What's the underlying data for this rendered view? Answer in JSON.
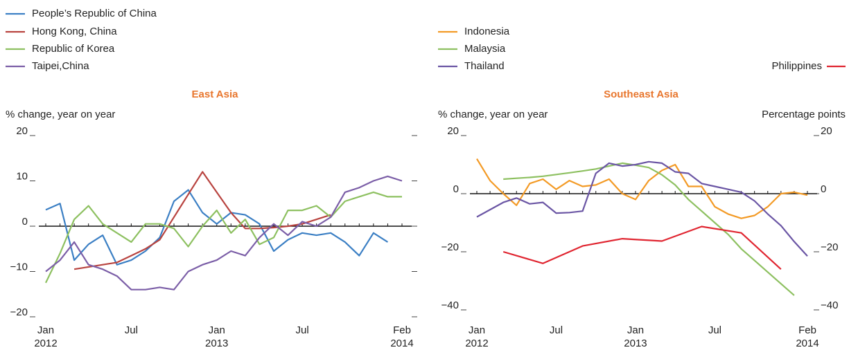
{
  "chart_data": [
    {
      "type": "line",
      "title": "East Asia",
      "y_label": "% change, year on year",
      "ycolor": "#222222",
      "x": [
        "2012-01",
        "2012-02",
        "2012-03",
        "2012-04",
        "2012-05",
        "2012-06",
        "2012-07",
        "2012-08",
        "2012-09",
        "2012-10",
        "2012-11",
        "2012-12",
        "2013-01",
        "2013-02",
        "2013-03",
        "2013-04",
        "2013-05",
        "2013-06",
        "2013-07",
        "2013-08",
        "2013-09",
        "2013-10",
        "2013-11",
        "2013-12",
        "2014-01",
        "2014-02"
      ],
      "xticks": [
        {
          "value": "2012-01",
          "label": "Jan",
          "year": "2012"
        },
        {
          "value": "2012-07",
          "label": "Jul"
        },
        {
          "value": "2013-01",
          "label": "Jan",
          "year": "2013"
        },
        {
          "value": "2013-07",
          "label": "Jul"
        },
        {
          "value": "2014-02",
          "label": "Feb",
          "year": "2014"
        }
      ],
      "ylim": [
        -20,
        20
      ],
      "yticks": [
        {
          "value": -20,
          "label": "−20"
        },
        {
          "value": -10,
          "label": "−10"
        },
        0,
        10,
        20
      ],
      "series": [
        {
          "name": "People’s Republic of China",
          "color": "#3b7fc4",
          "values": [
            3.6,
            5,
            -7.5,
            -4,
            -2,
            -8.5,
            -7.5,
            -5.5,
            -2.5,
            5.5,
            8,
            3,
            0.5,
            3,
            2.5,
            0.5,
            -5.5,
            -3,
            -1.5,
            -2,
            -1.5,
            -3.5,
            -6.5,
            -1.5,
            -3.5,
            null
          ]
        },
        {
          "name": "Hong Kong, China",
          "color": "#b8433f",
          "values": [
            null,
            null,
            -9.5,
            -9,
            -8.5,
            -8,
            -6.5,
            -5,
            -3,
            2,
            7,
            12,
            7.5,
            3,
            -0.5,
            -0.5,
            -0.3,
            0,
            0.5,
            1.5,
            2.5,
            null,
            null,
            null,
            null,
            null
          ]
        },
        {
          "name": "Republic of Korea",
          "color": "#8dc060",
          "values": [
            -12.5,
            -6,
            1.5,
            4.5,
            0.5,
            -1.5,
            -3.5,
            0.5,
            0.5,
            -0.5,
            -4.5,
            0,
            3.5,
            -1.5,
            1.5,
            -4,
            -2.5,
            3.5,
            3.5,
            4.5,
            2,
            5.5,
            6.5,
            7.5,
            6.5,
            6.5
          ]
        },
        {
          "name": "Taipei,China",
          "color": "#7b5ea7",
          "values": [
            -10,
            -7.5,
            -3.5,
            -8.5,
            -9.5,
            -11,
            -14,
            -14,
            -13.5,
            -14,
            -10,
            -8.5,
            -7.5,
            -5.5,
            -6.5,
            -2.5,
            0.5,
            -2,
            1,
            0,
            2,
            7.5,
            8.5,
            10,
            11,
            10
          ]
        }
      ]
    },
    {
      "type": "line",
      "title": "Southeast Asia",
      "y_label": "% change, year on year",
      "y2_label": "Percentage points",
      "ycolor": "#29a8d6",
      "y2color": "#e02530",
      "x": [
        "2012-01",
        "2012-02",
        "2012-03",
        "2012-04",
        "2012-05",
        "2012-06",
        "2012-07",
        "2012-08",
        "2012-09",
        "2012-10",
        "2012-11",
        "2012-12",
        "2013-01",
        "2013-02",
        "2013-03",
        "2013-04",
        "2013-05",
        "2013-06",
        "2013-07",
        "2013-08",
        "2013-09",
        "2013-10",
        "2013-11",
        "2013-12",
        "2014-01",
        "2014-02"
      ],
      "xticks": [
        {
          "value": "2012-01",
          "label": "Jan",
          "year": "2012"
        },
        {
          "value": "2012-07",
          "label": "Jul"
        },
        {
          "value": "2013-01",
          "label": "Jan",
          "year": "2013"
        },
        {
          "value": "2013-07",
          "label": "Jul"
        },
        {
          "value": "2014-02",
          "label": "Feb",
          "year": "2014"
        }
      ],
      "ylim": [
        -40,
        20
      ],
      "yticks": [
        {
          "value": -40,
          "label": "−40"
        },
        {
          "value": -20,
          "label": "−20"
        },
        0,
        20
      ],
      "y2lim": [
        -40,
        20
      ],
      "y2ticks": [
        {
          "value": -40,
          "label": "−40"
        },
        {
          "value": -20,
          "label": "−20"
        },
        0,
        20
      ],
      "series": [
        {
          "name": "Indonesia",
          "color": "#f39a25",
          "values": [
            12,
            4.5,
            0,
            -4,
            3.5,
            5,
            1.5,
            4.5,
            2.5,
            3,
            5,
            0,
            -2,
            4.5,
            8,
            10,
            2.5,
            2.5,
            -4.5,
            -7,
            -8.5,
            -7.5,
            -4.5,
            0,
            0.5,
            -0.5
          ]
        },
        {
          "name": "Malaysia",
          "color": "#8dc060",
          "values": [
            null,
            null,
            5,
            5.3,
            5.6,
            6,
            6.6,
            7.2,
            7.8,
            8.5,
            9.5,
            10.5,
            9.8,
            9,
            6.5,
            3,
            -2,
            -6,
            -10,
            -14,
            -19,
            -23,
            -27,
            -31,
            -35,
            null
          ]
        },
        {
          "name": "Thailand",
          "color": "#6a55a4",
          "values": [
            -8,
            -5.5,
            -3,
            -1.5,
            -3.5,
            -3,
            -6.7,
            -6.5,
            -6,
            7,
            10.5,
            9.5,
            10,
            11,
            10.5,
            7.5,
            7,
            3.5,
            2.5,
            1.5,
            0.5,
            -2.5,
            -7,
            -11,
            -16.5,
            -21.5
          ]
        },
        {
          "name": "Philippines",
          "color": "#e02530",
          "axis": "y2",
          "x": [
            "2012-03",
            "2012-06",
            "2012-09",
            "2012-12",
            "2013-03",
            "2013-06",
            "2013-09",
            "2013-12"
          ],
          "values": [
            -20,
            -24,
            -18,
            -15.5,
            -16.3,
            -11.3,
            -13.5,
            -26
          ]
        }
      ]
    }
  ]
}
